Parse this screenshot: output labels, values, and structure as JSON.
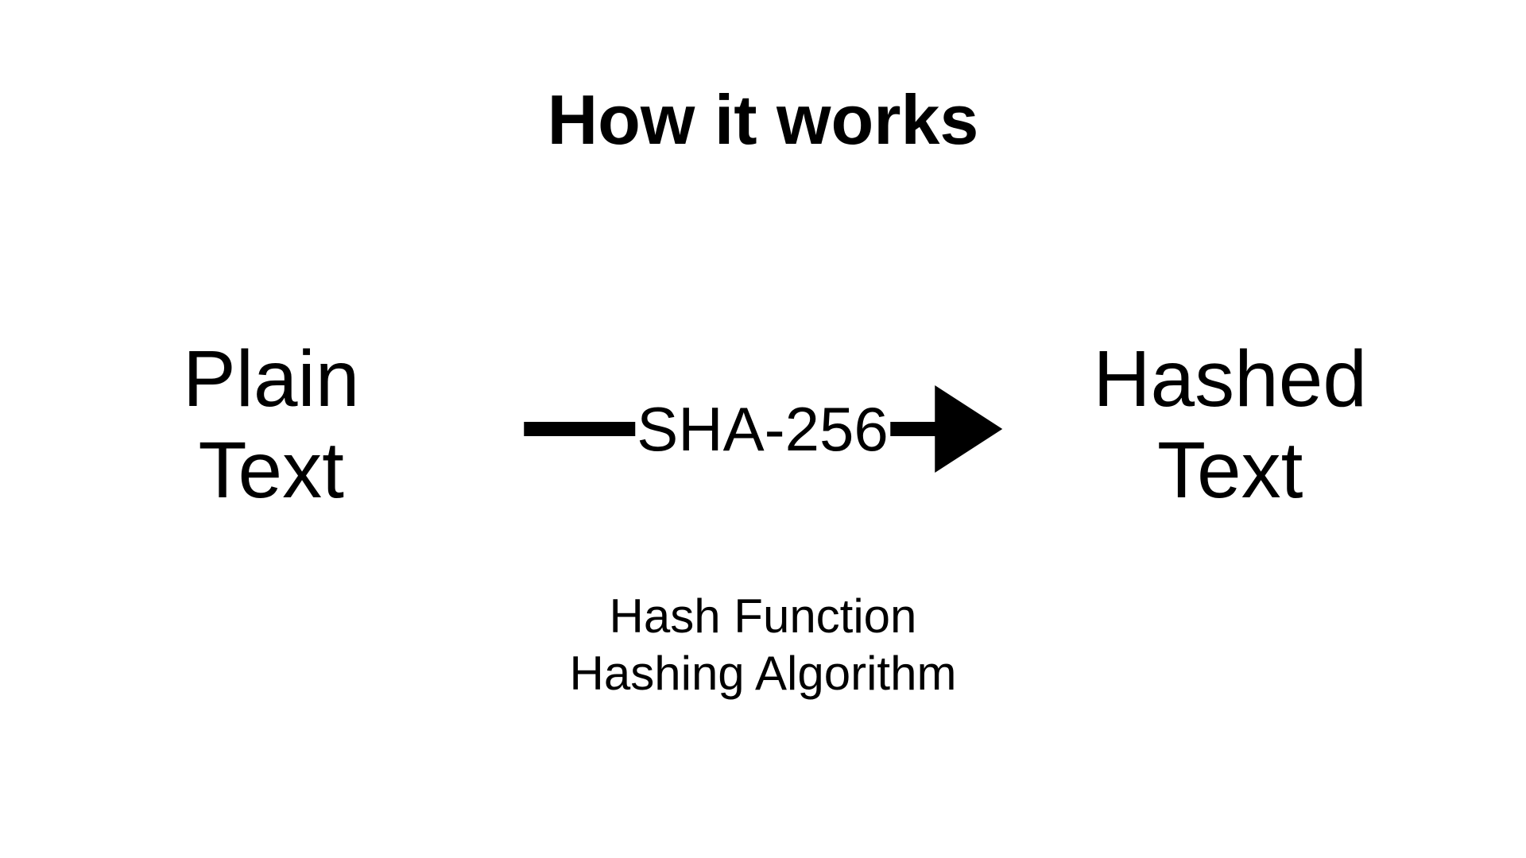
{
  "diagram": {
    "type": "flowchart",
    "background_color": "#ffffff",
    "text_color": "#000000",
    "title": {
      "text": "How it works",
      "fontsize": 88,
      "fontweight": 700
    },
    "left_node": {
      "line1": "Plain",
      "line2": "Text",
      "fontsize": 100,
      "fontweight": 400
    },
    "right_node": {
      "line1": "Hashed",
      "line2": "Text",
      "fontsize": 100,
      "fontweight": 400
    },
    "arrow": {
      "label": "SHA-256",
      "label_fontsize": 78,
      "line_color": "#000000",
      "line_thickness": 18,
      "left_segment_width": 140,
      "right_segment_width": 60,
      "head_width": 85,
      "head_height": 110
    },
    "caption": {
      "line1": "Hash Function",
      "line2": "Hashing Algorithm",
      "fontsize": 60,
      "fontweight": 400
    }
  }
}
